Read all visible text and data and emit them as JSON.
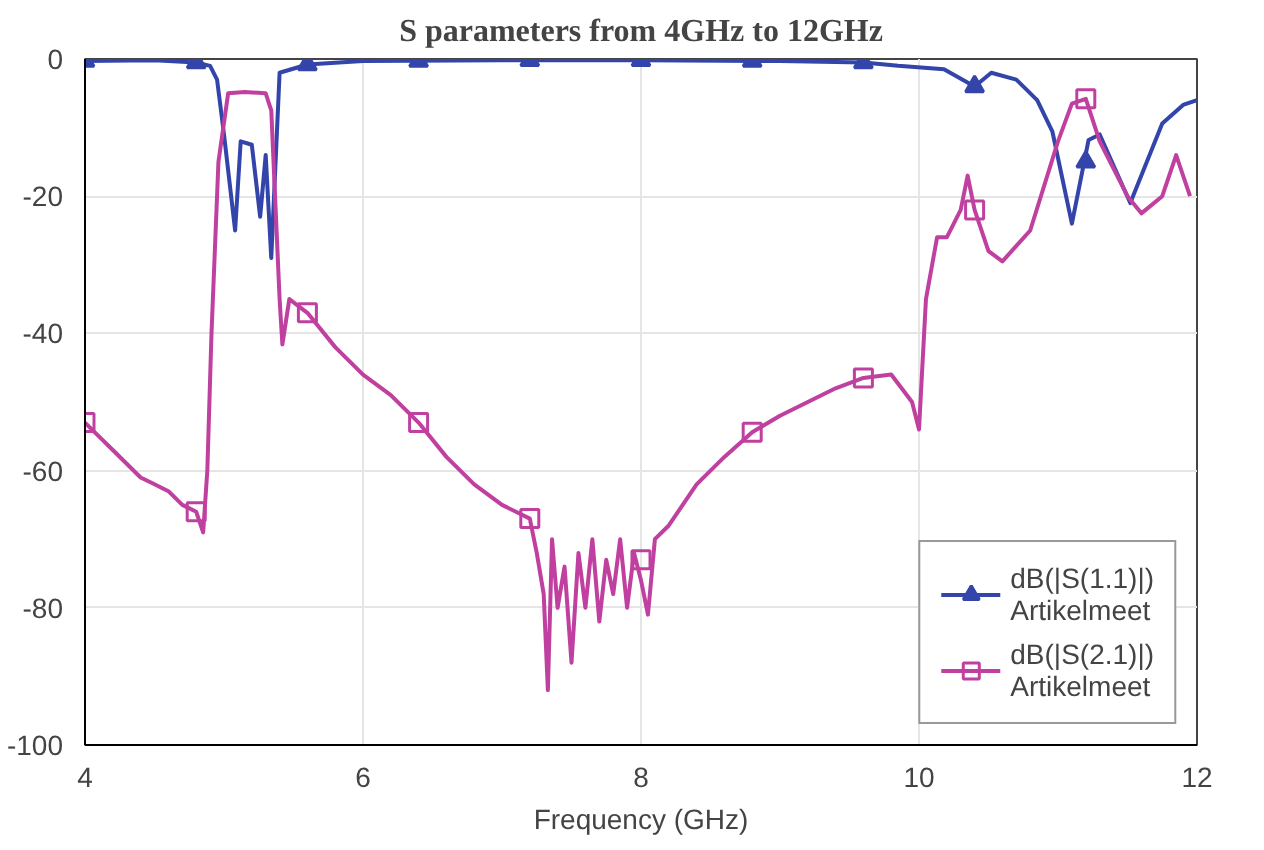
{
  "chart_data": {
    "type": "line",
    "title": "S parameters from 4GHz to 12GHz",
    "xlabel": "Frequency (GHz)",
    "xlim": [
      4,
      12
    ],
    "ylim": [
      -100,
      0
    ],
    "xticks": [
      4,
      6,
      8,
      10,
      12
    ],
    "yticks": [
      -100,
      -80,
      -60,
      -40,
      -20,
      0
    ],
    "grid": true,
    "legend": "bottom right",
    "line_style": "solid",
    "series": [
      {
        "name": "dB(|S(1.1)|)\nArtikelmeet",
        "color": "#3344aa",
        "x": [
          4.0,
          4.5,
          4.8,
          4.9,
          4.95,
          5.0,
          5.08,
          5.12,
          5.2,
          5.26,
          5.3,
          5.34,
          5.4,
          5.6,
          6.0,
          7.0,
          8.0,
          9.0,
          9.6,
          9.85,
          10.18,
          10.4,
          10.52,
          10.7,
          10.85,
          10.96,
          11.1,
          11.22,
          11.3,
          11.52,
          11.75,
          11.9,
          12.0
        ],
        "values": [
          -0.3,
          -0.2,
          -0.5,
          -1,
          -3,
          -11,
          -25,
          -12,
          -12.5,
          -23,
          -14,
          -29,
          -2,
          -0.8,
          -0.3,
          -0.2,
          -0.2,
          -0.3,
          -0.5,
          -1,
          -1.5,
          -4,
          -2,
          -3,
          -6,
          -10.6,
          -24,
          -11.8,
          -11,
          -21,
          -9.4,
          -6.7,
          -6
        ]
      },
      {
        "name": "dB(|S(2.1)|)\nArtikelmeet",
        "color": "#c040a0",
        "x": [
          4.0,
          4.1,
          4.2,
          4.3,
          4.4,
          4.5,
          4.6,
          4.7,
          4.8,
          4.85,
          4.88,
          4.91,
          4.96,
          5.03,
          5.15,
          5.3,
          5.34,
          5.4,
          5.42,
          5.47,
          5.6,
          5.8,
          6.0,
          6.2,
          6.4,
          6.6,
          6.8,
          7.0,
          7.1,
          7.2,
          7.25,
          7.3,
          7.33,
          7.36,
          7.4,
          7.45,
          7.5,
          7.55,
          7.6,
          7.65,
          7.7,
          7.75,
          7.8,
          7.85,
          7.9,
          7.95,
          8.0,
          8.05,
          8.1,
          8.2,
          8.4,
          8.6,
          8.8,
          9.0,
          9.2,
          9.4,
          9.6,
          9.8,
          9.95,
          10.0,
          10.05,
          10.13,
          10.2,
          10.3,
          10.35,
          10.4,
          10.5,
          10.6,
          10.8,
          11.0,
          11.1,
          11.2,
          11.3,
          11.5,
          11.6,
          11.75,
          11.85,
          11.95
        ],
        "values": [
          -53,
          -55,
          -57,
          -59,
          -61,
          -62,
          -63,
          -65,
          -66,
          -69,
          -60,
          -40,
          -15,
          -5,
          -4.8,
          -5,
          -7.5,
          -35,
          -41.6,
          -35,
          -37,
          -42,
          -46,
          -49,
          -53,
          -58,
          -62,
          -65,
          -66,
          -67,
          -72,
          -78,
          -92,
          -70,
          -80,
          -74,
          -88,
          -72,
          -80,
          -70,
          -82,
          -73,
          -78,
          -70,
          -80,
          -72,
          -76,
          -81,
          -70,
          -68,
          -62,
          -58,
          -54.4,
          -52,
          -50,
          -48,
          -46.5,
          -46,
          -50,
          -54,
          -35,
          -26,
          -26,
          -22,
          -17,
          -22,
          -28,
          -29.5,
          -25,
          -12,
          -6.5,
          -5.8,
          -12,
          -20,
          -22.5,
          -20,
          -14,
          -20
        ]
      },
      {
        "type": "scatter",
        "marker": "triangle",
        "color": "#3344aa",
        "x": [
          4.0,
          4.8,
          5.6,
          6.4,
          7.2,
          8.0,
          8.8,
          9.6,
          10.4,
          11.2
        ],
        "values": [
          -0.3,
          -0.5,
          -0.8,
          -0.3,
          -0.2,
          -0.2,
          -0.3,
          -0.5,
          -4,
          -15
        ]
      },
      {
        "type": "scatter",
        "marker": "square",
        "color": "#c040a0",
        "x": [
          4.0,
          4.8,
          5.6,
          6.4,
          7.2,
          8.0,
          8.8,
          9.6,
          10.4,
          11.2
        ],
        "values": [
          -53,
          -66,
          -37,
          -53,
          -67,
          -73,
          -54.4,
          -46.5,
          -22,
          -5.8
        ]
      }
    ]
  }
}
